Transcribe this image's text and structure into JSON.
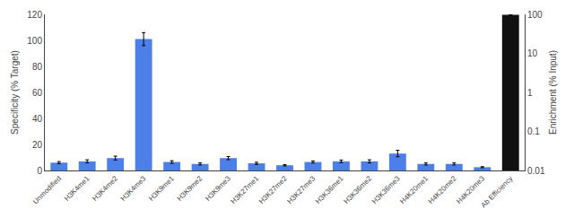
{
  "chart_data": {
    "type": "bar",
    "categories": [
      "Unmodified",
      "H3K4me1",
      "H3K4me2",
      "H3K4me3",
      "H3K9me1",
      "H3K9me2",
      "H3K9me3",
      "H3K27me1",
      "H3K27me2",
      "H3K27me3",
      "H3K36me1",
      "H3K36me2",
      "H3K36me3",
      "H4K20me1",
      "H4K20me2",
      "H4K20me3",
      "Ab Efficiency"
    ],
    "series": [
      {
        "color": "#4d7fe8",
        "values": [
          6.0,
          7.0,
          9.5,
          101.0,
          6.5,
          5.0,
          9.5,
          5.5,
          4.0,
          6.5,
          7.0,
          7.0,
          13.0,
          5.0,
          5.0,
          2.5,
          null
        ],
        "errors": [
          0.8,
          1.2,
          1.5,
          5.0,
          1.0,
          0.8,
          1.2,
          0.8,
          0.5,
          0.8,
          1.0,
          1.2,
          2.5,
          0.8,
          0.8,
          0.4,
          null
        ]
      },
      {
        "color": "#111111",
        "axis": "y2",
        "values": [
          null,
          null,
          null,
          null,
          null,
          null,
          null,
          null,
          null,
          null,
          null,
          null,
          null,
          null,
          null,
          null,
          98.0
        ],
        "errors": [
          null,
          null,
          null,
          null,
          null,
          null,
          null,
          null,
          null,
          null,
          null,
          null,
          null,
          null,
          null,
          null,
          1.5
        ]
      }
    ],
    "ylabel": "Specificity (% Target)",
    "y2label": "Enrichment (% Input)",
    "ylim": [
      0,
      120
    ],
    "yticks": [
      0,
      20,
      40,
      60,
      80,
      100,
      120
    ],
    "y2lim": [
      0.01,
      100
    ],
    "y2ticks": [
      0.01,
      0.1,
      1,
      10,
      100
    ],
    "log": "y2",
    "grid": false
  }
}
